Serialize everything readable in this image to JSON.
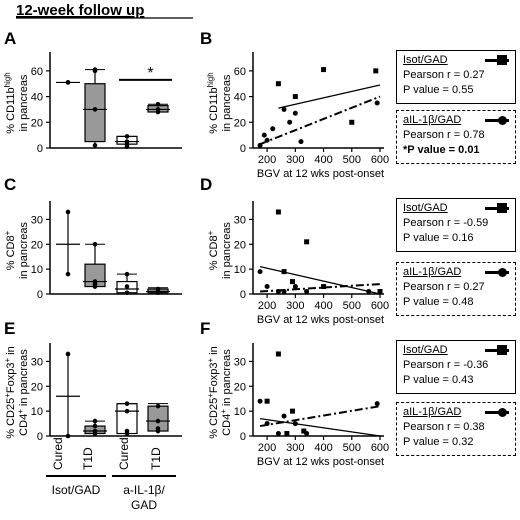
{
  "header": {
    "title": "12-week follow up"
  },
  "panels": {
    "A": "A",
    "B": "B",
    "C": "C",
    "D": "D",
    "E": "E",
    "F": "F"
  },
  "groups": {
    "isot": "Isot/GAD",
    "ail": "a-IL-1β/\nGAD",
    "ail_line1": "a-IL-1β/",
    "ail_line2": "GAD",
    "cured": "Cured",
    "t1d": "T1D"
  },
  "significance": "*",
  "stats": [
    {
      "panel": "B",
      "isot": {
        "name": "Isot/GAD",
        "r": "Pearson r = 0.27",
        "p": "P value = 0.55"
      },
      "ail": {
        "name": "aIL-1β/GAD",
        "r": "Pearson r = 0.78",
        "p": "*P value = 0.01"
      }
    },
    {
      "panel": "D",
      "isot": {
        "name": "Isot/GAD",
        "r": "Pearson r = -0.59",
        "p": "P value = 0.16"
      },
      "ail": {
        "name": "aIL-1β/GAD",
        "r": "Pearson r = 0.27",
        "p": "P value = 0.48"
      }
    },
    {
      "panel": "F",
      "isot": {
        "name": "Isot/GAD",
        "r": "Pearson r = -0.36",
        "p": "P value = 0.43"
      },
      "ail": {
        "name": "aIL-1β/GAD",
        "r": "Pearson r = 0.38",
        "p": "P value = 0.32"
      }
    }
  ],
  "chart_data": [
    {
      "panel": "A",
      "type": "box",
      "ylabel": "% CD11b high in pancreas",
      "ylabel_lines": [
        "% CD11b",
        "high",
        "in pancreas"
      ],
      "ylim": [
        0,
        70
      ],
      "yticks": [
        0,
        20,
        40,
        60
      ],
      "groups": [
        {
          "label": "Isot/GAD Cured",
          "fill": "#ffffff",
          "box": null,
          "median": 51,
          "min": 51,
          "max": 51,
          "points": [
            51,
            51
          ]
        },
        {
          "label": "Isot/GAD T1D",
          "fill": "#999999",
          "box": [
            5,
            50
          ],
          "median": 30,
          "min": 2,
          "max": 61,
          "points": [
            61,
            2,
            30,
            60
          ]
        },
        {
          "label": "a-IL-1β/GAD Cured",
          "fill": "#ffffff",
          "box": [
            3,
            9
          ],
          "median": 5,
          "min": 1,
          "max": 9,
          "points": [
            9,
            5,
            3,
            1
          ]
        },
        {
          "label": "a-IL-1β/GAD T1D",
          "fill": "#999999",
          "box": [
            28,
            33
          ],
          "median": 30,
          "min": 27,
          "max": 34,
          "points": [
            34,
            30,
            28
          ]
        }
      ],
      "significance_bar": {
        "from": 2,
        "to": 3,
        "y": 53
      }
    },
    {
      "panel": "B",
      "type": "scatter",
      "xlabel": "BGV at 12 wks post-onset",
      "ylabel": "% CD11b high in pancreas",
      "ylabel_lines": [
        "% CD11b",
        "high",
        "in pancreas"
      ],
      "xlim": [
        150,
        600
      ],
      "ylim": [
        0,
        70
      ],
      "xticks": [
        200,
        300,
        400,
        500,
        600
      ],
      "yticks": [
        0,
        20,
        40,
        60
      ],
      "series": [
        {
          "name": "Isot/GAD",
          "marker": "square",
          "line": "solid",
          "x": [
            240,
            300,
            400,
            500,
            585
          ],
          "y": [
            50,
            40,
            61,
            20,
            60
          ],
          "fit": [
            [
              240,
              31
            ],
            [
              600,
              49
            ]
          ]
        },
        {
          "name": "aIL-1β/GAD",
          "marker": "circle",
          "line": "dashdot",
          "x": [
            175,
            190,
            200,
            220,
            260,
            280,
            300,
            320,
            590
          ],
          "y": [
            2,
            10,
            6,
            15,
            30,
            20,
            27,
            5,
            35
          ],
          "fit": [
            [
              175,
              3
            ],
            [
              600,
              40
            ]
          ]
        }
      ]
    },
    {
      "panel": "C",
      "type": "box",
      "ylabel": "% CD8+ in pancreas",
      "ylabel_lines": [
        "% CD8",
        "+",
        "in pancreas"
      ],
      "ylim": [
        0,
        35
      ],
      "yticks": [
        0,
        10,
        20,
        30
      ],
      "groups": [
        {
          "label": "Isot/GAD Cured",
          "fill": "#ffffff",
          "box": null,
          "median": 20,
          "min": 8,
          "max": 33,
          "points": [
            33,
            8
          ]
        },
        {
          "label": "Isot/GAD T1D",
          "fill": "#999999",
          "box": [
            3,
            12
          ],
          "median": 5,
          "min": 2,
          "max": 20,
          "points": [
            20,
            5,
            4,
            3
          ]
        },
        {
          "label": "a-IL-1β/GAD Cured",
          "fill": "#ffffff",
          "box": [
            0.5,
            5
          ],
          "median": 2,
          "min": 0,
          "max": 8,
          "points": [
            8,
            3,
            0.5
          ]
        },
        {
          "label": "a-IL-1β/GAD T1D",
          "fill": "#999999",
          "box": [
            0.5,
            2
          ],
          "median": 1,
          "min": 0.3,
          "max": 2.5,
          "points": [
            2,
            1,
            0.5
          ]
        }
      ]
    },
    {
      "panel": "D",
      "type": "scatter",
      "xlabel": "BGV at 12 wks post-onset",
      "ylabel": "% CD8+ in pancreas",
      "ylabel_lines": [
        "% CD8",
        "+",
        "in pancreas"
      ],
      "xlim": [
        150,
        600
      ],
      "ylim": [
        0,
        35
      ],
      "xticks": [
        200,
        300,
        400,
        500,
        600
      ],
      "yticks": [
        0,
        10,
        20,
        30
      ],
      "series": [
        {
          "name": "Isot/GAD",
          "marker": "square",
          "line": "solid",
          "x": [
            240,
            260,
            290,
            340,
            400,
            600
          ],
          "y": [
            33,
            9,
            5,
            21,
            3,
            1
          ],
          "fit": [
            [
              175,
              11
            ],
            [
              600,
              0
            ]
          ]
        },
        {
          "name": "aIL-1β/GAD",
          "marker": "circle",
          "line": "dashdot",
          "x": [
            175,
            200,
            240,
            260,
            300,
            340,
            560
          ],
          "y": [
            9,
            3,
            1,
            1,
            3,
            1,
            1
          ],
          "fit": [
            [
              175,
              1
            ],
            [
              600,
              4
            ]
          ]
        }
      ]
    },
    {
      "panel": "E",
      "type": "box",
      "ylabel": "% CD25+Foxp3+ in CD4+ in pancreas",
      "ylabel_lines": [
        "% CD25",
        "+",
        "Foxp3",
        "+",
        " in",
        "CD4",
        "+",
        " in pancreas"
      ],
      "ylim": [
        0,
        35
      ],
      "yticks": [
        0,
        10,
        20,
        30
      ],
      "groups": [
        {
          "label": "Isot/GAD Cured",
          "fill": "#ffffff",
          "box": null,
          "median": 16,
          "min": 0,
          "max": 33,
          "points": [
            33,
            0
          ]
        },
        {
          "label": "Isot/GAD T1D",
          "fill": "#999999",
          "box": [
            1,
            4
          ],
          "median": 2,
          "min": 0.5,
          "max": 6,
          "points": [
            6,
            4,
            2,
            1
          ]
        },
        {
          "label": "a-IL-1β/GAD Cured",
          "fill": "#ffffff",
          "box": [
            1,
            13
          ],
          "median": 10,
          "min": 0.5,
          "max": 13,
          "points": [
            13,
            10,
            2,
            1
          ]
        },
        {
          "label": "a-IL-1β/GAD T1D",
          "fill": "#999999",
          "box": [
            2,
            12
          ],
          "median": 6,
          "min": 1,
          "max": 13,
          "points": [
            12,
            6,
            3,
            2
          ]
        }
      ]
    },
    {
      "panel": "F",
      "type": "scatter",
      "xlabel": "BGV at 12 wks post-onset",
      "ylabel": "% CD25+Foxp3+ in CD4+ in pancreas",
      "ylabel_lines": [
        "% CD25",
        "+",
        "Foxp3",
        "+",
        " in",
        "CD4",
        "+",
        " in pancreas"
      ],
      "xlim": [
        150,
        600
      ],
      "ylim": [
        0,
        35
      ],
      "xticks": [
        200,
        300,
        400,
        500,
        600
      ],
      "yticks": [
        0,
        10,
        20,
        30
      ],
      "series": [
        {
          "name": "Isot/GAD",
          "marker": "square",
          "line": "solid",
          "x": [
            200,
            240,
            270,
            290,
            330
          ],
          "y": [
            14,
            33,
            1,
            10,
            2
          ],
          "fit": [
            [
              175,
              7
            ],
            [
              600,
              0
            ]
          ]
        },
        {
          "name": "aIL-1β/GAD",
          "marker": "circle",
          "line": "dashdot",
          "x": [
            175,
            200,
            240,
            260,
            300,
            340,
            590
          ],
          "y": [
            14,
            5,
            1,
            8,
            5,
            1,
            13
          ],
          "fit": [
            [
              175,
              4
            ],
            [
              600,
              12
            ]
          ]
        }
      ]
    }
  ]
}
